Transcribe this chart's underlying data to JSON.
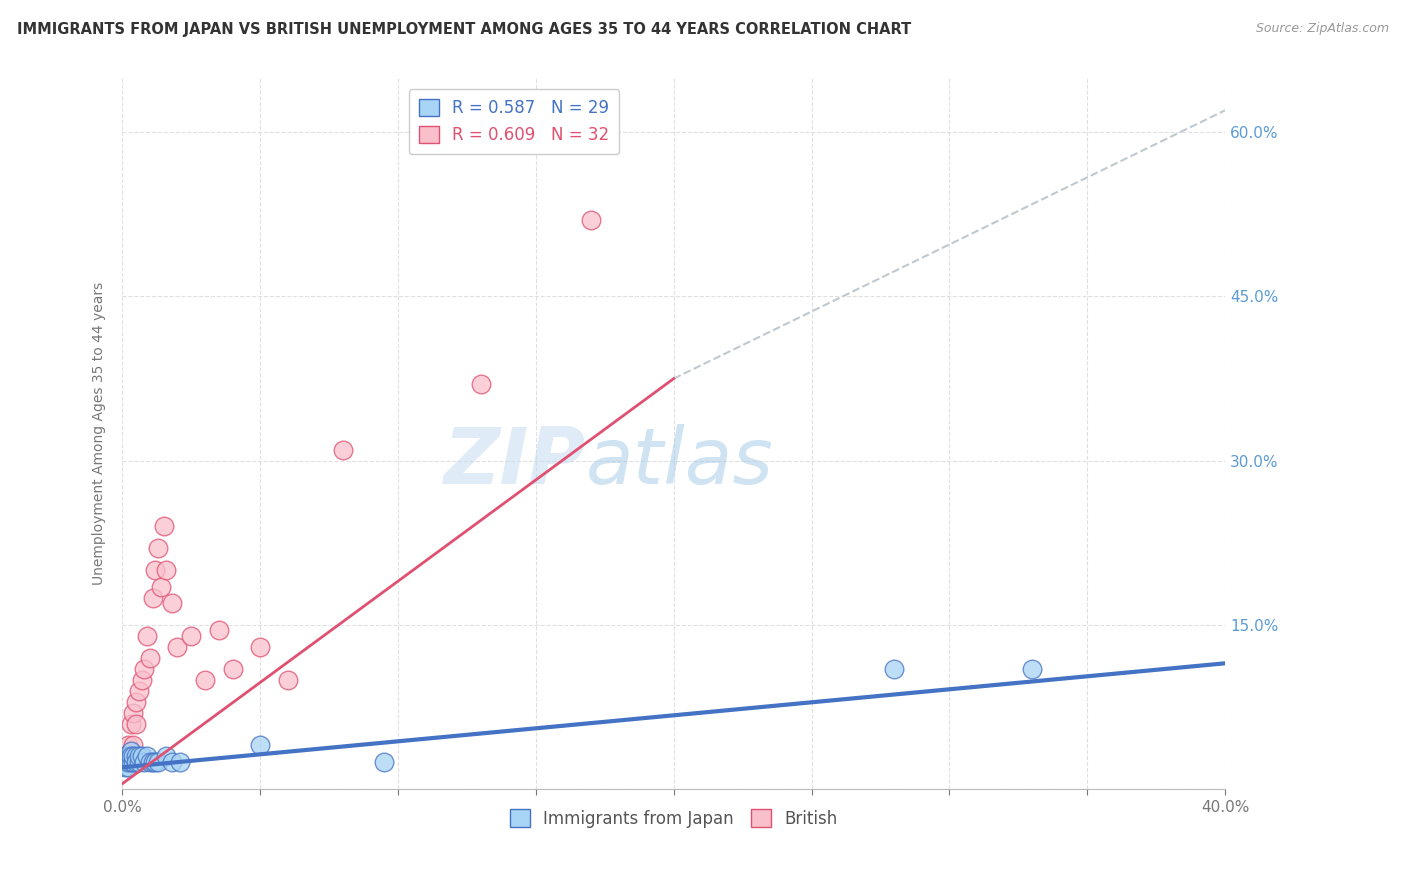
{
  "title": "IMMIGRANTS FROM JAPAN VS BRITISH UNEMPLOYMENT AMONG AGES 35 TO 44 YEARS CORRELATION CHART",
  "source": "Source: ZipAtlas.com",
  "ylabel": "Unemployment Among Ages 35 to 44 years",
  "xlim": [
    0.0,
    0.4
  ],
  "ylim": [
    0.0,
    0.65
  ],
  "yticks": [
    0.0,
    0.15,
    0.3,
    0.45,
    0.6
  ],
  "ytick_labels": [
    "",
    "15.0%",
    "30.0%",
    "45.0%",
    "60.0%"
  ],
  "xticks": [
    0.0,
    0.05,
    0.1,
    0.15,
    0.2,
    0.25,
    0.3,
    0.35,
    0.4
  ],
  "xtick_labels": [
    "0.0%",
    "",
    "",
    "",
    "",
    "",
    "",
    "",
    "40.0%"
  ],
  "color_japan": "#A8D4F5",
  "color_british": "#F9C0CC",
  "color_japan_line": "#4472C4",
  "color_british_line": "#E05070",
  "color_dashed": "#C0C8D0",
  "legend_label_japan": "Immigrants from Japan",
  "legend_label_british": "British",
  "japan_scatter_x": [
    0.001,
    0.001,
    0.001,
    0.002,
    0.002,
    0.002,
    0.003,
    0.003,
    0.003,
    0.004,
    0.004,
    0.005,
    0.005,
    0.006,
    0.006,
    0.007,
    0.008,
    0.009,
    0.01,
    0.011,
    0.012,
    0.013,
    0.016,
    0.018,
    0.021,
    0.05,
    0.095,
    0.28,
    0.33
  ],
  "japan_scatter_y": [
    0.02,
    0.03,
    0.025,
    0.02,
    0.03,
    0.025,
    0.025,
    0.035,
    0.03,
    0.025,
    0.03,
    0.03,
    0.025,
    0.025,
    0.03,
    0.03,
    0.025,
    0.03,
    0.025,
    0.025,
    0.025,
    0.025,
    0.03,
    0.025,
    0.025,
    0.04,
    0.025,
    0.11,
    0.11
  ],
  "british_scatter_x": [
    0.001,
    0.001,
    0.002,
    0.002,
    0.003,
    0.003,
    0.004,
    0.004,
    0.005,
    0.005,
    0.006,
    0.007,
    0.008,
    0.009,
    0.01,
    0.011,
    0.012,
    0.013,
    0.014,
    0.015,
    0.016,
    0.018,
    0.02,
    0.025,
    0.03,
    0.035,
    0.04,
    0.05,
    0.06,
    0.08,
    0.13,
    0.17
  ],
  "british_scatter_y": [
    0.025,
    0.03,
    0.03,
    0.04,
    0.035,
    0.06,
    0.04,
    0.07,
    0.06,
    0.08,
    0.09,
    0.1,
    0.11,
    0.14,
    0.12,
    0.175,
    0.2,
    0.22,
    0.185,
    0.24,
    0.2,
    0.17,
    0.13,
    0.14,
    0.1,
    0.145,
    0.11,
    0.13,
    0.1,
    0.31,
    0.37,
    0.52
  ],
  "japan_line_x": [
    0.0,
    0.4
  ],
  "japan_line_y": [
    0.02,
    0.115
  ],
  "british_line_x": [
    0.0,
    0.2
  ],
  "british_line_y": [
    0.005,
    0.375
  ],
  "dashed_line_x": [
    0.2,
    0.4
  ],
  "dashed_line_y": [
    0.375,
    0.62
  ],
  "watermark_top": "ZIP",
  "watermark_bottom": "atlas",
  "background_color": "#FFFFFF",
  "grid_color": "#DDDDDD"
}
